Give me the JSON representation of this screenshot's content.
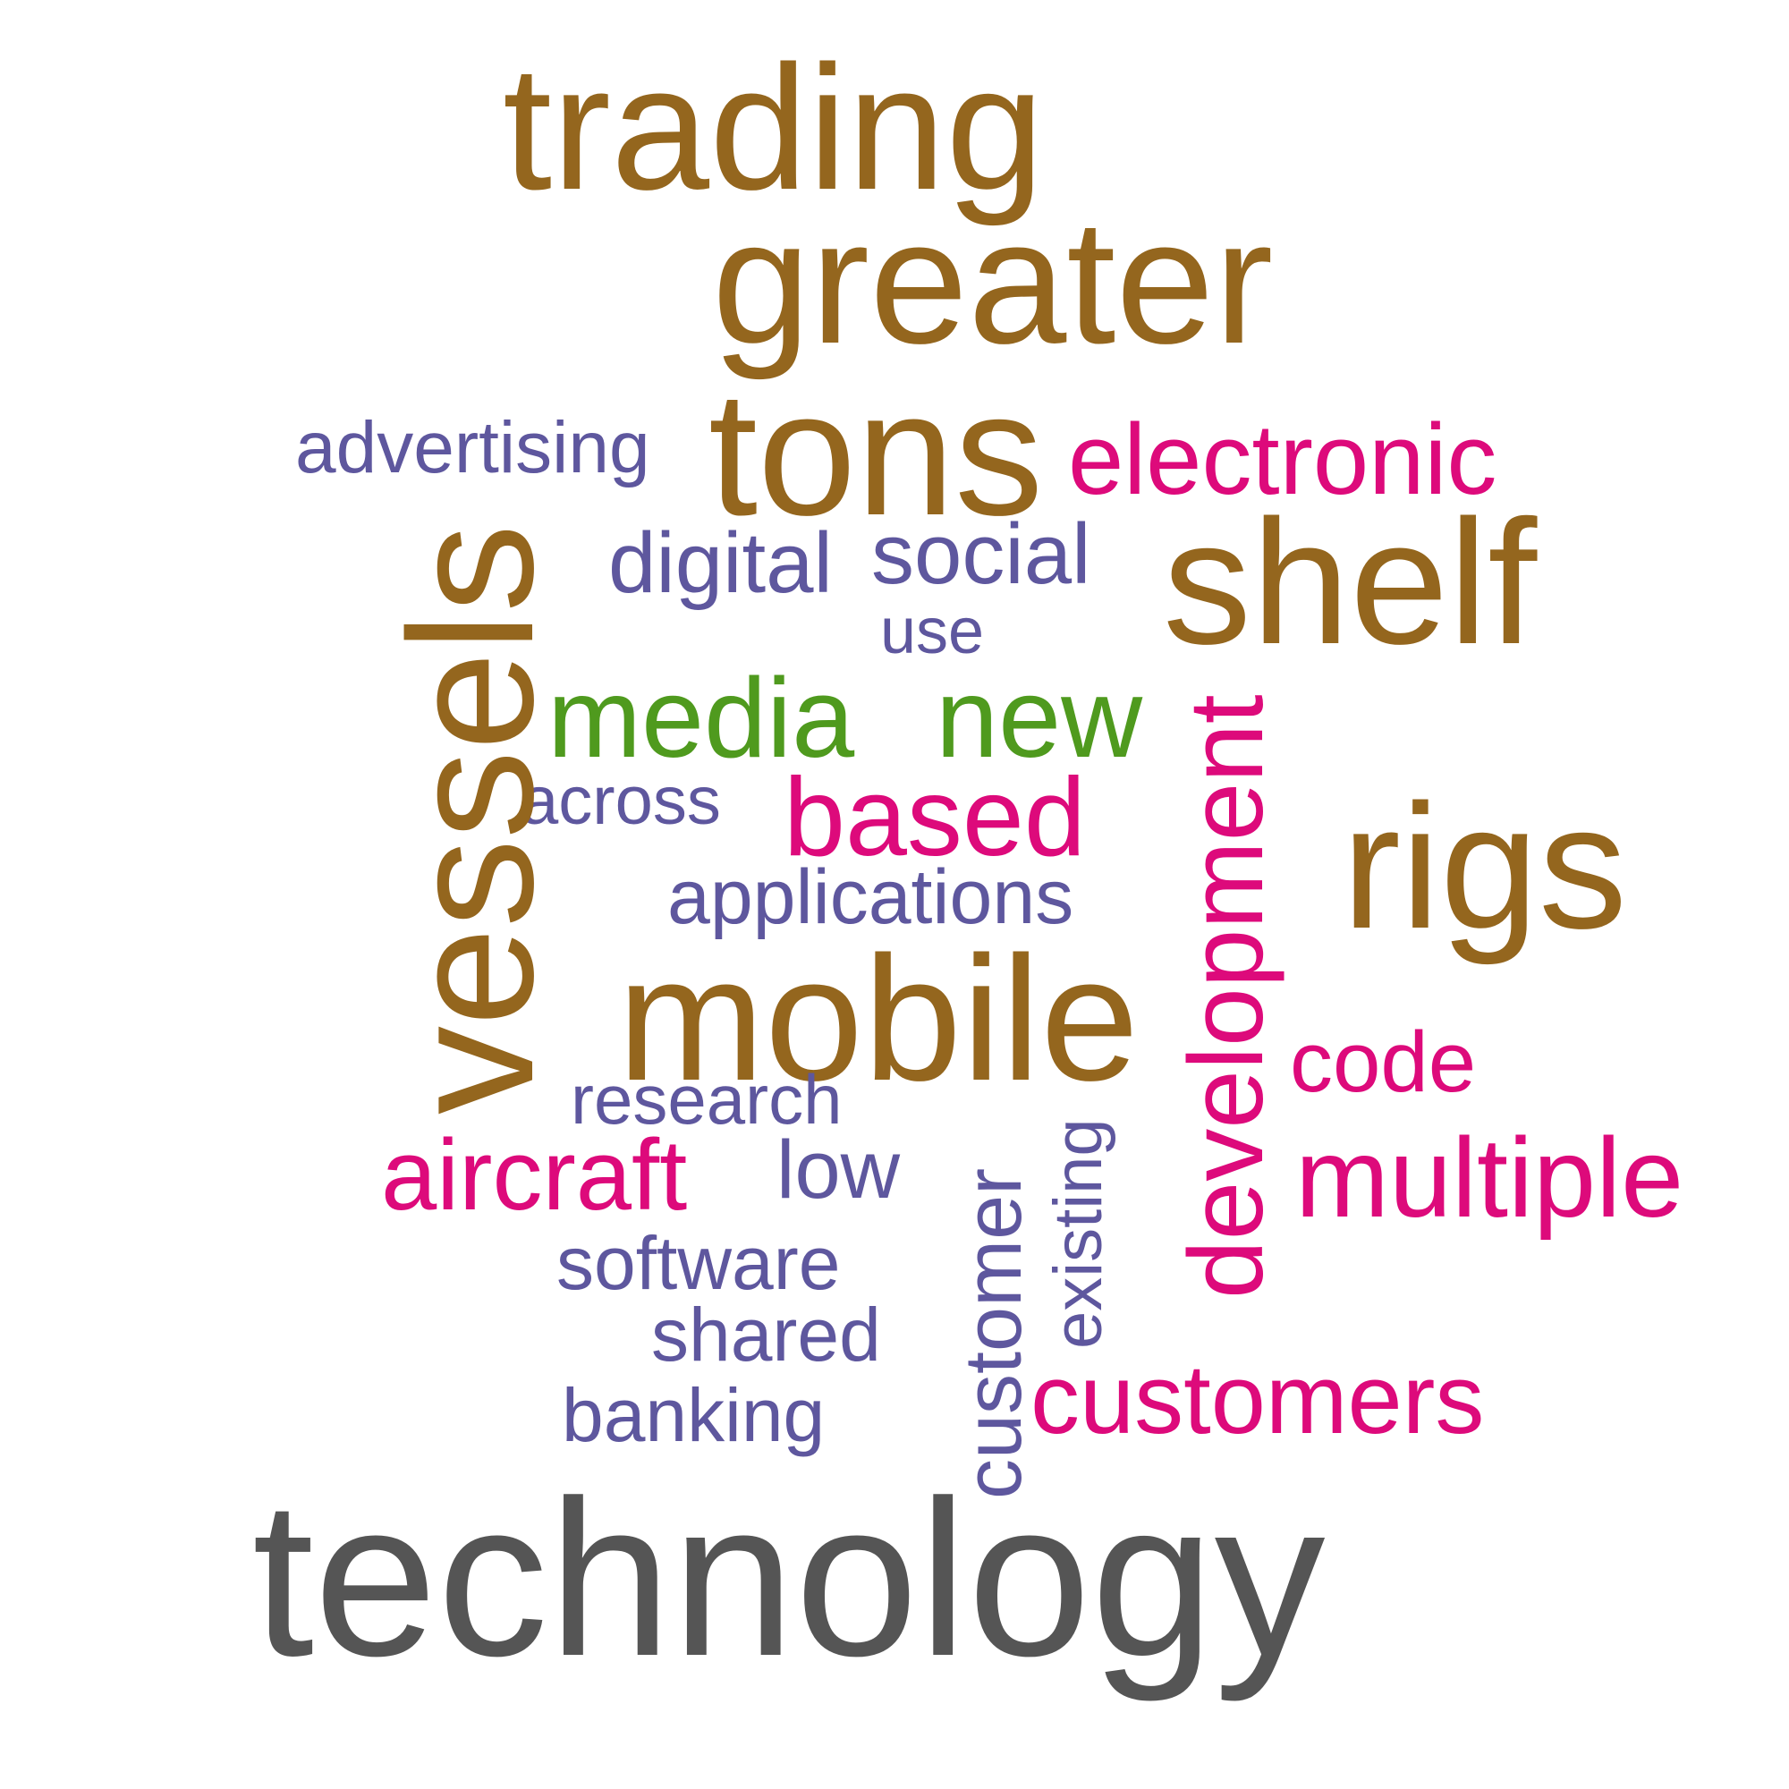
{
  "colors": {
    "brown": "#94661e",
    "pink": "#dd0a7b",
    "purple": "#5e579e",
    "green": "#4f9a1e",
    "gray": "#555555"
  },
  "words": {
    "trading": "trading",
    "greater": "greater",
    "advertising": "advertising",
    "tons": "tons",
    "electronic": "electronic",
    "vessels": "vessels",
    "digital": "digital",
    "social": "social",
    "shelf": "shelf",
    "use": "use",
    "media": "media",
    "new": "new",
    "development": "development",
    "across": "across",
    "based": "based",
    "rigs": "rigs",
    "applications": "applications",
    "mobile": "mobile",
    "code": "code",
    "research": "research",
    "existing": "existing",
    "customer": "customer",
    "aircraft": "aircraft",
    "low": "low",
    "multiple": "multiple",
    "software": "software",
    "shared": "shared",
    "customers": "customers",
    "banking": "banking",
    "technology": "technology"
  }
}
